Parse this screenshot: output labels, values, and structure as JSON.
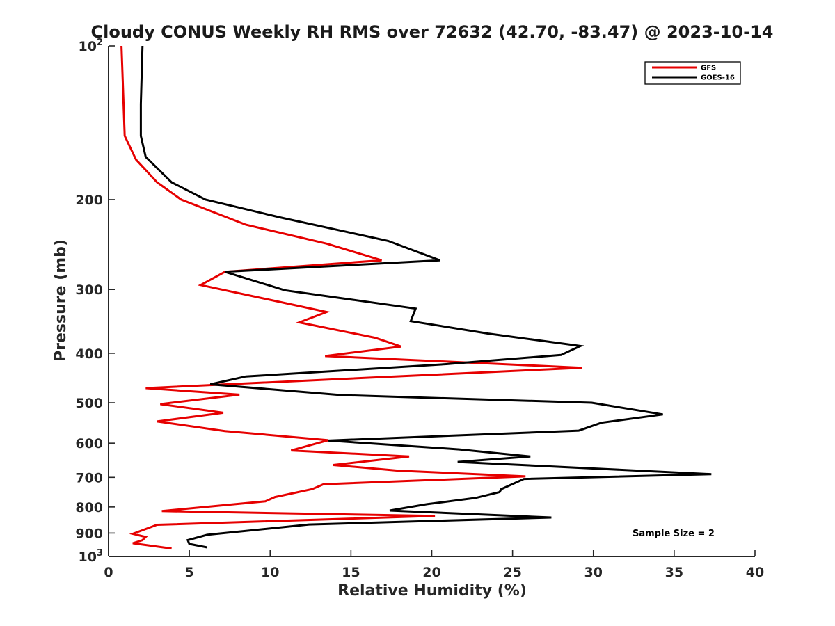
{
  "chart_data": {
    "type": "line",
    "title": "Cloudy CONUS Weekly RH RMS over 72632 (42.70, -83.47) @ 2023-10-14",
    "xlabel": "Relative Humidity (%)",
    "ylabel": "Pressure (mb)",
    "xlim": [
      0,
      40
    ],
    "ylim": [
      100,
      1000
    ],
    "y_scale": "log",
    "y_reversed": true,
    "x_ticks": [
      0,
      5,
      10,
      15,
      20,
      25,
      30,
      35,
      40
    ],
    "y_ticks": [
      {
        "value": 100,
        "base": "10",
        "exp": "2"
      },
      {
        "value": 200,
        "label": "200"
      },
      {
        "value": 300,
        "label": "300"
      },
      {
        "value": 400,
        "label": "400"
      },
      {
        "value": 500,
        "label": "500"
      },
      {
        "value": 600,
        "label": "600"
      },
      {
        "value": 700,
        "label": "700"
      },
      {
        "value": 800,
        "label": "800"
      },
      {
        "value": 900,
        "label": "900"
      },
      {
        "value": 1000,
        "base": "10",
        "exp": "3"
      }
    ],
    "grid": false,
    "legend_position": "top-right",
    "annotation": "Sample Size = 2",
    "series": [
      {
        "name": "GFS",
        "color": "#e60000",
        "points": [
          [
            0.8,
            100
          ],
          [
            1.0,
            150
          ],
          [
            1.7,
            167
          ],
          [
            3.0,
            185
          ],
          [
            4.5,
            200
          ],
          [
            8.5,
            224
          ],
          [
            13.5,
            244
          ],
          [
            16.9,
            263
          ],
          [
            7.2,
            277
          ],
          [
            5.7,
            294
          ],
          [
            13.5,
            332
          ],
          [
            11.8,
            348
          ],
          [
            16.5,
            373
          ],
          [
            18.1,
            388
          ],
          [
            13.4,
            405
          ],
          [
            29.3,
            427
          ],
          [
            2.3,
            468
          ],
          [
            8.1,
            482
          ],
          [
            3.2,
            503
          ],
          [
            7.1,
            523
          ],
          [
            3.0,
            544
          ],
          [
            7.2,
            568
          ],
          [
            13.6,
            592
          ],
          [
            11.3,
            620
          ],
          [
            18.6,
            637
          ],
          [
            13.9,
            662
          ],
          [
            17.9,
            679
          ],
          [
            25.8,
            697
          ],
          [
            13.3,
            722
          ],
          [
            12.6,
            738
          ],
          [
            10.3,
            765
          ],
          [
            9.7,
            780
          ],
          [
            3.3,
            815
          ],
          [
            20.2,
            833
          ],
          [
            3.0,
            867
          ],
          [
            1.5,
            903
          ],
          [
            2.3,
            916
          ],
          [
            2.1,
            929
          ],
          [
            1.5,
            942
          ],
          [
            3.9,
            965
          ]
        ]
      },
      {
        "name": "GOES-16",
        "color": "#000000",
        "points": [
          [
            2.1,
            100
          ],
          [
            2.0,
            130
          ],
          [
            2.0,
            150
          ],
          [
            2.3,
            165
          ],
          [
            3.9,
            185
          ],
          [
            6.0,
            200
          ],
          [
            10.7,
            217
          ],
          [
            17.3,
            241
          ],
          [
            20.5,
            263
          ],
          [
            7.2,
            277
          ],
          [
            10.9,
            301
          ],
          [
            19.0,
            327
          ],
          [
            18.7,
            346
          ],
          [
            23.5,
            366
          ],
          [
            29.2,
            387
          ],
          [
            28.0,
            403
          ],
          [
            20.9,
            420
          ],
          [
            8.5,
            444
          ],
          [
            6.3,
            460
          ],
          [
            14.4,
            483
          ],
          [
            29.9,
            500
          ],
          [
            34.3,
            527
          ],
          [
            30.5,
            547
          ],
          [
            29.1,
            567
          ],
          [
            13.6,
            593
          ],
          [
            21.7,
            617
          ],
          [
            26.1,
            637
          ],
          [
            21.6,
            653
          ],
          [
            37.3,
            690
          ],
          [
            25.7,
            705
          ],
          [
            24.3,
            738
          ],
          [
            24.2,
            748
          ],
          [
            22.7,
            768
          ],
          [
            19.7,
            790
          ],
          [
            17.4,
            813
          ],
          [
            27.4,
            839
          ],
          [
            12.4,
            866
          ],
          [
            6.1,
            907
          ],
          [
            4.9,
            929
          ],
          [
            5.0,
            945
          ],
          [
            6.1,
            960
          ]
        ]
      }
    ]
  }
}
